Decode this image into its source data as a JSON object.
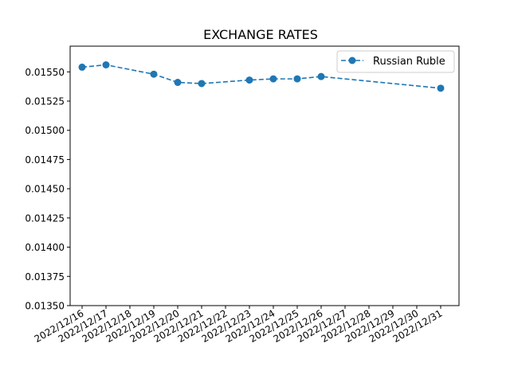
{
  "chart_data": {
    "type": "line",
    "title": "EXCHANGE RATES",
    "xlabel": "",
    "ylabel": "",
    "x_ticks": [
      "2022/12/16",
      "2022/12/17",
      "2022/12/18",
      "2022/12/19",
      "2022/12/20",
      "2022/12/21",
      "2022/12/22",
      "2022/12/23",
      "2022/12/24",
      "2022/12/25",
      "2022/12/26",
      "2022/12/27",
      "2022/12/28",
      "2022/12/29",
      "2022/12/30",
      "2022/12/31"
    ],
    "y_ticks": [
      "0.01350",
      "0.01375",
      "0.01400",
      "0.01425",
      "0.01450",
      "0.01475",
      "0.01500",
      "0.01525",
      "0.01550"
    ],
    "ylim": [
      0.0135,
      0.01572
    ],
    "grid": false,
    "legend_position": "top-right",
    "series": [
      {
        "name": "Russian Ruble",
        "color": "#1f77b4",
        "line_style": "dashed",
        "marker": "circle",
        "points": [
          {
            "x": "2022/12/16",
            "y": 0.01554
          },
          {
            "x": "2022/12/17",
            "y": 0.01556
          },
          {
            "x": "2022/12/19",
            "y": 0.01548
          },
          {
            "x": "2022/12/20",
            "y": 0.01541
          },
          {
            "x": "2022/12/21",
            "y": 0.0154
          },
          {
            "x": "2022/12/23",
            "y": 0.01543
          },
          {
            "x": "2022/12/24",
            "y": 0.01544
          },
          {
            "x": "2022/12/25",
            "y": 0.01544
          },
          {
            "x": "2022/12/26",
            "y": 0.01546
          },
          {
            "x": "2022/12/31",
            "y": 0.01536
          }
        ]
      }
    ]
  }
}
